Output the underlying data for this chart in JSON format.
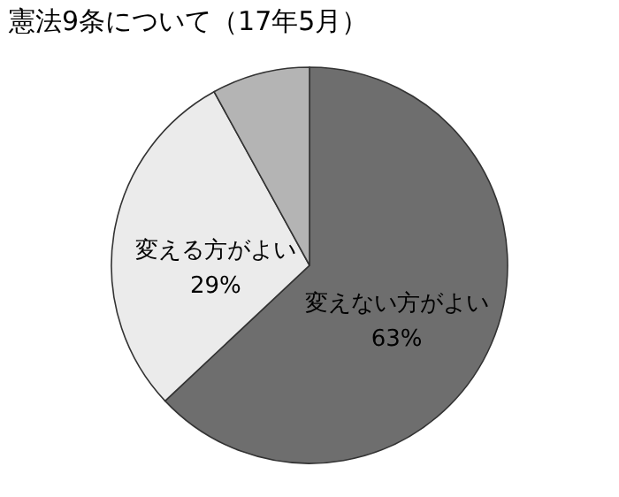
{
  "chart_data": {
    "type": "pie",
    "title": "憲法9条について（17年5月）",
    "categories": [
      "変えない方がよい",
      "変える方がよい",
      null
    ],
    "values": [
      63,
      29,
      8
    ],
    "colors": [
      "#6e6e6e",
      "#ebebeb",
      "#b4b4b4"
    ],
    "value_labels": [
      "63%",
      "29%",
      null
    ],
    "legend": false
  }
}
